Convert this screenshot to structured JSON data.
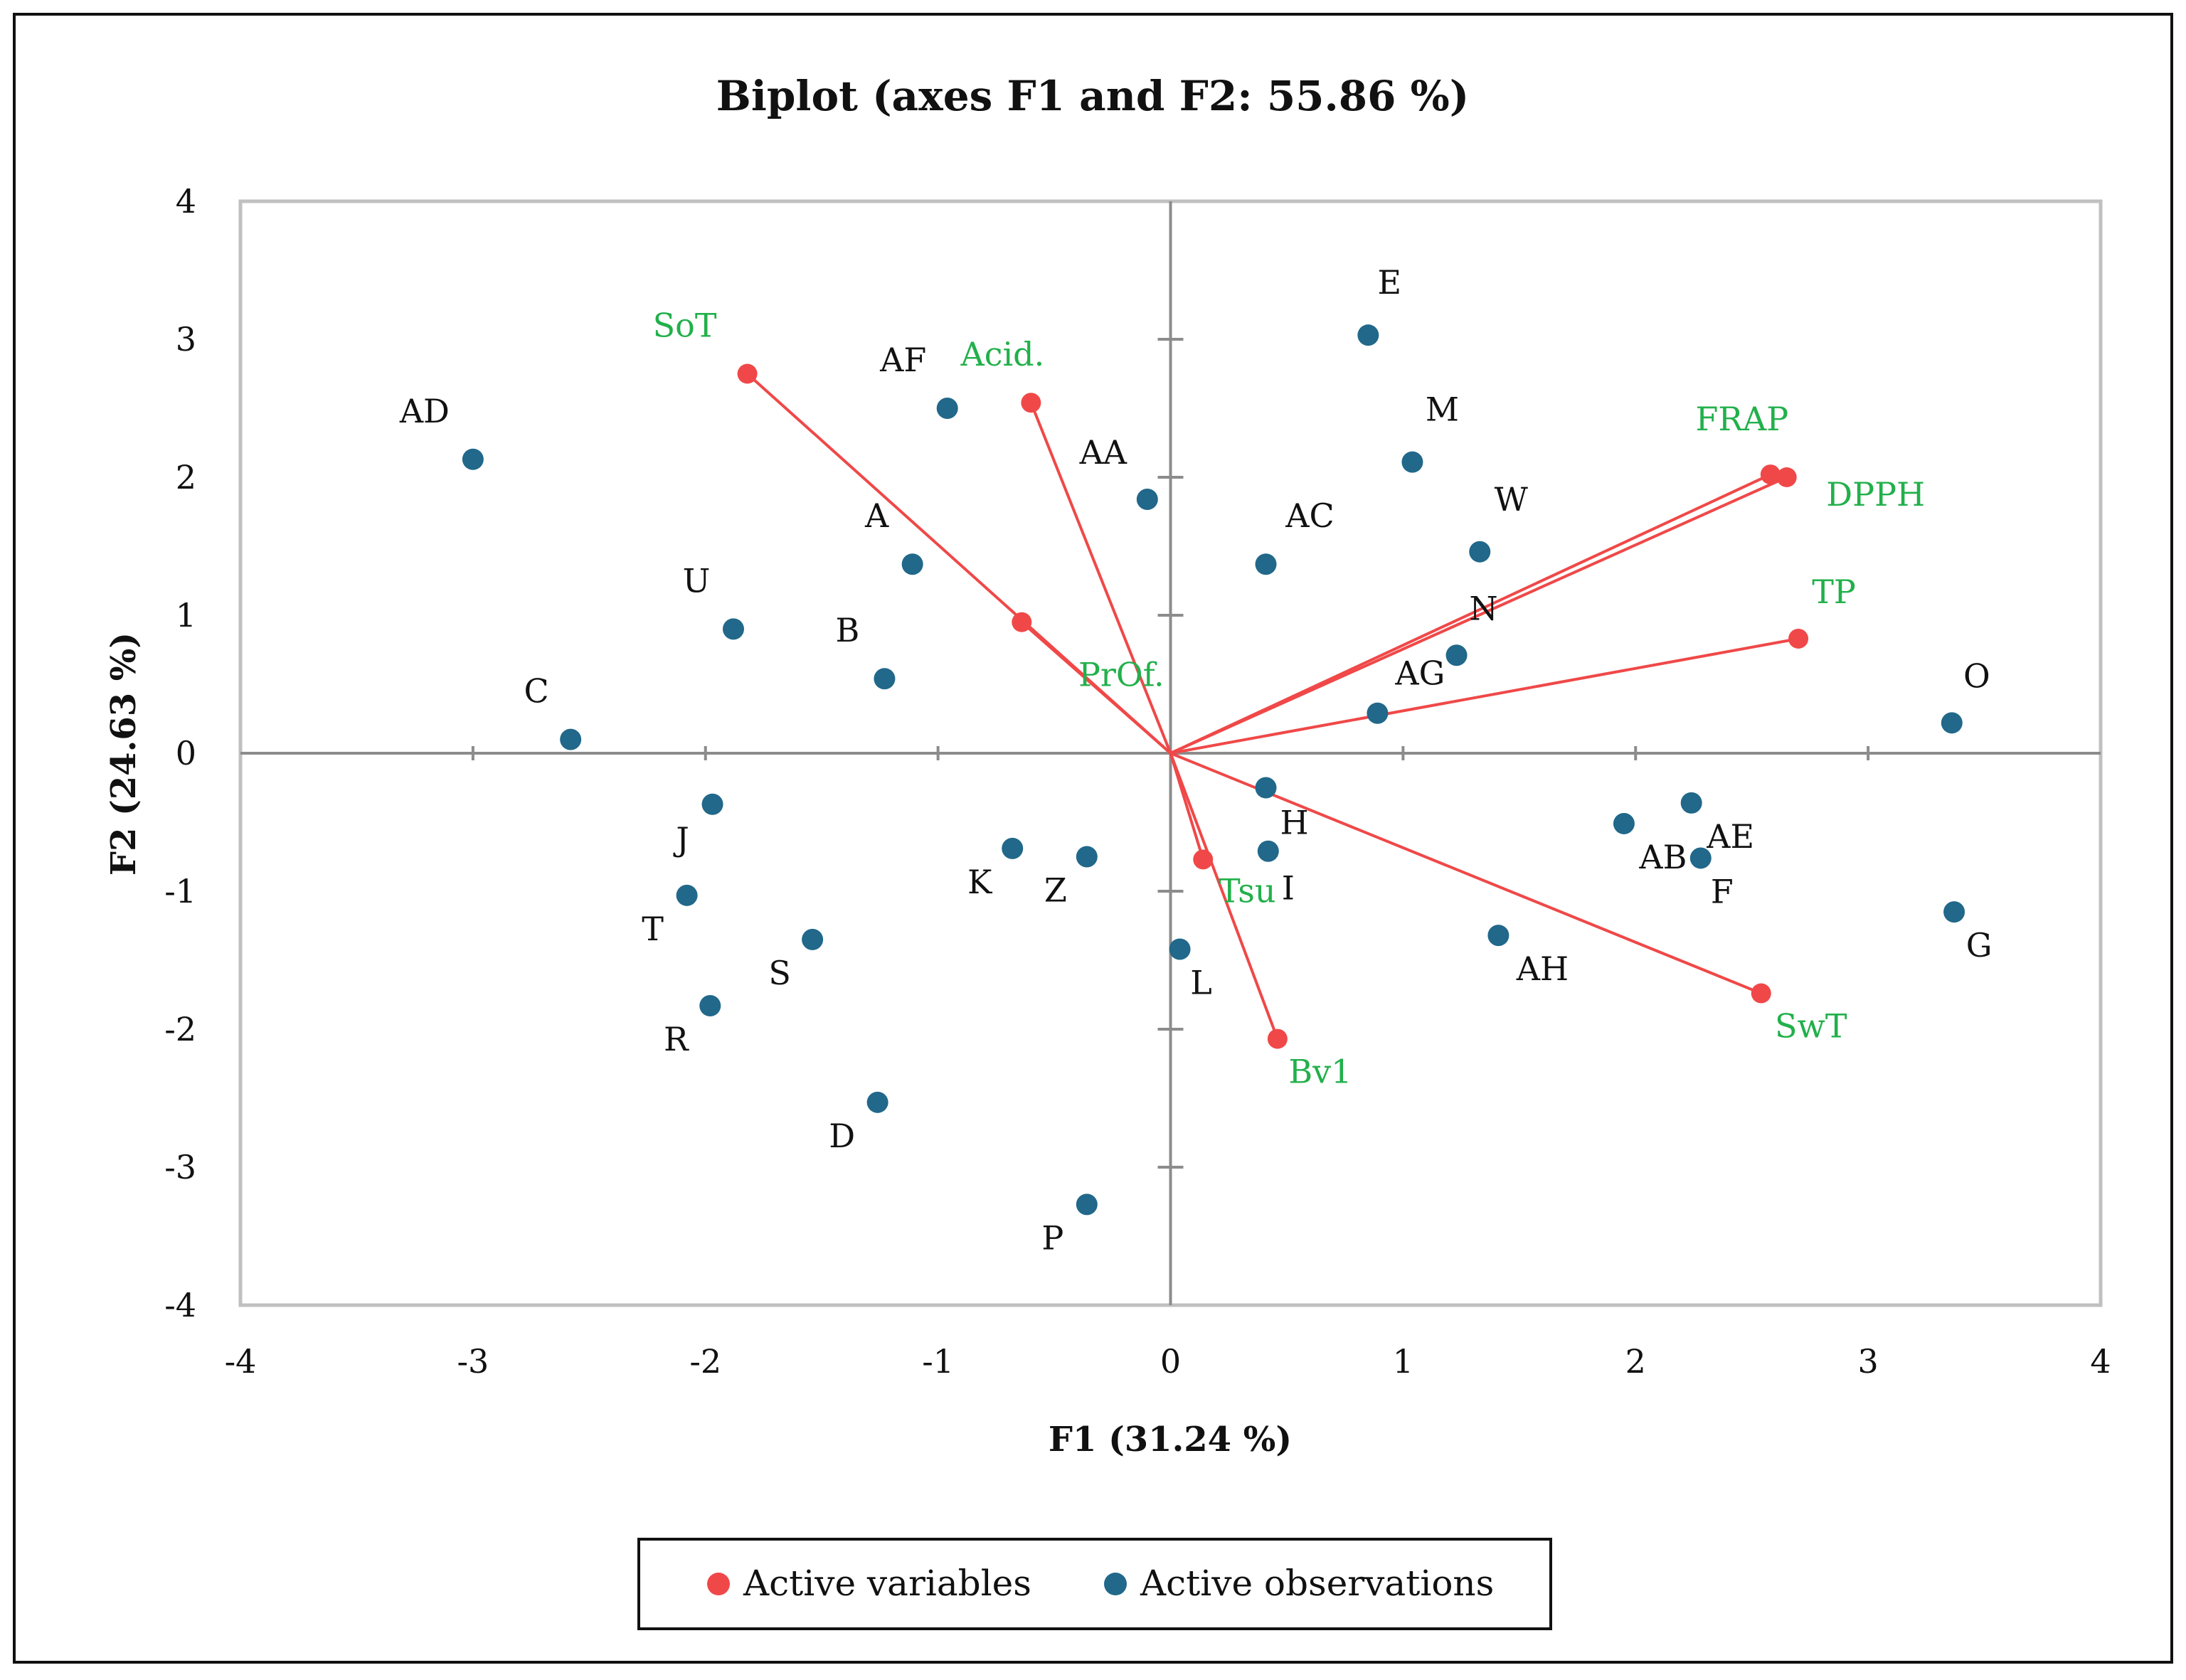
{
  "chart_data": {
    "type": "scatter",
    "title": "Biplot (axes F1 and F2: 55.86 %)",
    "xlabel": "F1 (31.24 %)",
    "ylabel": "F2 (24.63 %)",
    "xlim": [
      -4,
      4
    ],
    "ylim": [
      -4,
      4
    ],
    "xticks": [
      -4,
      -3,
      -2,
      -1,
      0,
      1,
      2,
      3,
      4
    ],
    "yticks": [
      -4,
      -3,
      -2,
      -1,
      0,
      1,
      2,
      3,
      4
    ],
    "legend": {
      "placement": "bottom-center",
      "entries": [
        {
          "label": "Active variables",
          "color": "#f04848"
        },
        {
          "label": "Active observations",
          "color": "#21688a"
        }
      ]
    },
    "series": [
      {
        "name": "Active variables",
        "color": "#f04848",
        "label_color": "#22b04b",
        "vectors": true,
        "points": [
          {
            "label": "SoT",
            "x": -1.82,
            "y": 2.75
          },
          {
            "label": "Acid.",
            "x": -0.6,
            "y": 2.54
          },
          {
            "label": "PrOf.",
            "x": -0.64,
            "y": 0.95
          },
          {
            "label": "FRAP",
            "x": 2.58,
            "y": 2.02
          },
          {
            "label": "DPPH",
            "x": 2.65,
            "y": 2.0
          },
          {
            "label": "TP",
            "x": 2.7,
            "y": 0.83
          },
          {
            "label": "SwT",
            "x": 2.54,
            "y": -1.74
          },
          {
            "label": "Tsu",
            "x": 0.14,
            "y": -0.77
          },
          {
            "label": "Bv1",
            "x": 0.46,
            "y": -2.07
          }
        ]
      },
      {
        "name": "Active observations",
        "color": "#21688a",
        "points": [
          {
            "label": "AD",
            "x": -3.0,
            "y": 2.13
          },
          {
            "label": "AF",
            "x": -0.96,
            "y": 2.5
          },
          {
            "label": "AA",
            "x": -0.1,
            "y": 1.84
          },
          {
            "label": "E",
            "x": 0.85,
            "y": 3.03
          },
          {
            "label": "M",
            "x": 1.04,
            "y": 2.11
          },
          {
            "label": "W",
            "x": 1.33,
            "y": 1.46
          },
          {
            "label": "AC",
            "x": 0.41,
            "y": 1.37
          },
          {
            "label": "A",
            "x": -1.11,
            "y": 1.37
          },
          {
            "label": "U",
            "x": -1.88,
            "y": 0.9
          },
          {
            "label": "B",
            "x": -1.23,
            "y": 0.54
          },
          {
            "label": "C",
            "x": -2.58,
            "y": 0.1
          },
          {
            "label": "N",
            "x": 1.23,
            "y": 0.71
          },
          {
            "label": "AG",
            "x": 0.89,
            "y": 0.29
          },
          {
            "label": "O",
            "x": 3.36,
            "y": 0.22
          },
          {
            "label": "H",
            "x": 0.41,
            "y": -0.25
          },
          {
            "label": "I",
            "x": 0.42,
            "y": -0.71
          },
          {
            "label": "J",
            "x": -1.97,
            "y": -0.37
          },
          {
            "label": "T",
            "x": -2.08,
            "y": -1.03
          },
          {
            "label": "S",
            "x": -1.54,
            "y": -1.35
          },
          {
            "label": "R",
            "x": -1.98,
            "y": -1.83
          },
          {
            "label": "K",
            "x": -0.68,
            "y": -0.69
          },
          {
            "label": "Z",
            "x": -0.36,
            "y": -0.75
          },
          {
            "label": "L",
            "x": 0.04,
            "y": -1.42
          },
          {
            "label": "D",
            "x": -1.26,
            "y": -2.53
          },
          {
            "label": "P",
            "x": -0.36,
            "y": -3.27
          },
          {
            "label": "AB",
            "x": 1.95,
            "y": -0.51
          },
          {
            "label": "AE",
            "x": 2.24,
            "y": -0.36
          },
          {
            "label": "F",
            "x": 2.28,
            "y": -0.76
          },
          {
            "label": "AH",
            "x": 1.41,
            "y": -1.32
          },
          {
            "label": "G",
            "x": 3.37,
            "y": -1.15
          }
        ]
      }
    ]
  }
}
